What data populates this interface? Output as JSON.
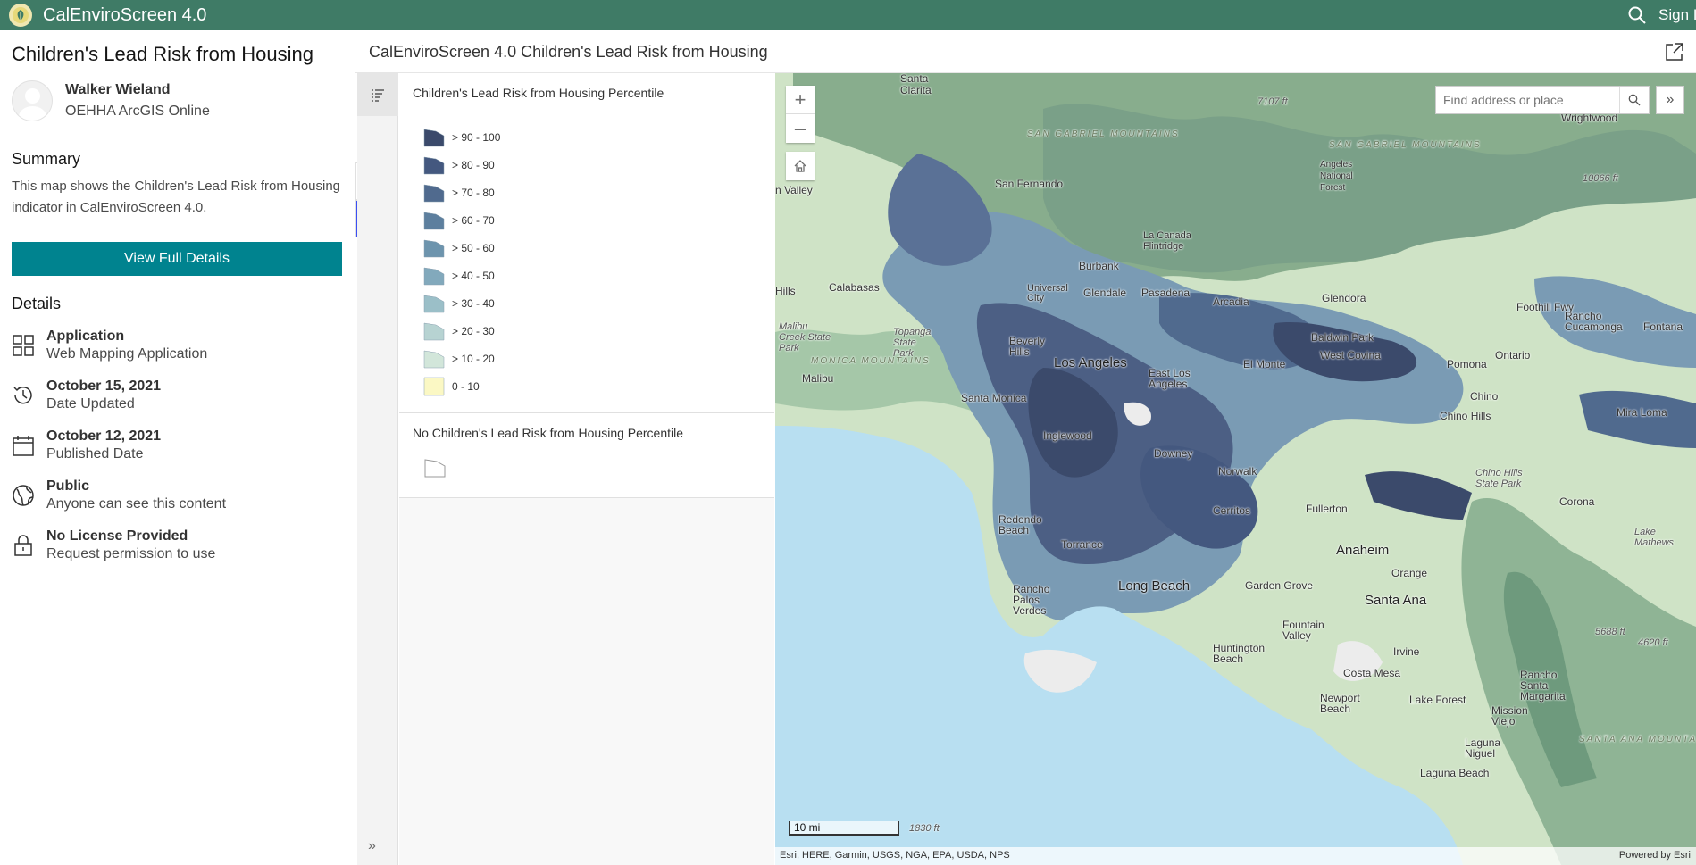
{
  "topbar": {
    "app_title": "CalEnviroScreen 4.0",
    "signin": "Sign In"
  },
  "item": {
    "title": "Children's Lead Risk from Housing",
    "owner_name": "Walker Wieland",
    "owner_org": "OEHHA ArcGIS Online",
    "summary_heading": "Summary",
    "summary_text": "This map shows the Children's Lead Risk from Housing indicator in CalEnviroScreen 4.0.",
    "full_details_label": "View Full Details",
    "details_heading": "Details",
    "details": [
      {
        "icon": "grid-icon",
        "title": "Application",
        "sub": "Web Mapping Application"
      },
      {
        "icon": "history-icon",
        "title": "October 15, 2021",
        "sub": "Date Updated"
      },
      {
        "icon": "calendar-icon",
        "title": "October 12, 2021",
        "sub": "Published Date"
      },
      {
        "icon": "globe-icon",
        "title": "Public",
        "sub": "Anyone can see this content"
      },
      {
        "icon": "lock-icon",
        "title": "No License Provided",
        "sub": "Request permission to use"
      }
    ]
  },
  "map_header": {
    "title": "CalEnviroScreen 4.0 Children's Lead Risk from Housing"
  },
  "legend": {
    "title": "Children's Lead Risk from Housing Percentile",
    "classes": [
      {
        "label": "> 90 - 100",
        "color": "#3b4a6b"
      },
      {
        "label": "> 80 - 90",
        "color": "#44587f"
      },
      {
        "label": "> 70 - 80",
        "color": "#506a8e"
      },
      {
        "label": "> 60 - 70",
        "color": "#5d7f9e"
      },
      {
        "label": "> 50 - 60",
        "color": "#6d94ad"
      },
      {
        "label": "> 40 - 50",
        "color": "#82a9bc"
      },
      {
        "label": "> 30 - 40",
        "color": "#9bbfc8"
      },
      {
        "label": "> 20 - 30",
        "color": "#b7d3d2"
      },
      {
        "label": "> 10 - 20",
        "color": "#d2e6da"
      },
      {
        "label": "0 - 10",
        "color": "#fbf8c4"
      }
    ],
    "nodata_title": "No Children's Lead Risk from Housing Percentile"
  },
  "map": {
    "search_placeholder": "Find address or place",
    "scale_label": "10 mi",
    "attribution": "Esri, HERE, Garmin, USGS, NGA, EPA, USDA, NPS",
    "powered_by": "Powered by Esri",
    "labels": {
      "santa_clarita": "Santa\nClarita",
      "san_gabriel_mtns": "SAN GABRIEL MOUNTAINS",
      "san_gabriel_mtns2": "SAN GABRIEL MOUNTAINS",
      "angeles_nf": "Angeles\nNational\nForest",
      "san_fernando": "San Fernando",
      "la_canada": "La Canada\nFlintridge",
      "burbank": "Burbank",
      "glendale": "Glendale",
      "pasadena": "Pasadena",
      "universal_city": "Universal\nCity",
      "calabasas": "Calabasas",
      "hills": "Hills",
      "malibu_creek": "Malibu\nCreek State\nPark",
      "topanga": "Topanga\nState\nPark",
      "santa_monica_mtns": "MONICA MOUNTAINS",
      "malibu": "Malibu",
      "beverly_hills": "Beverly\nHills",
      "los_angeles": "Los Angeles",
      "east_la": "East Los\nAngeles",
      "santa_monica": "Santa Monica",
      "inglewood": "Inglewood",
      "downey": "Downey",
      "norwalk": "Norwalk",
      "cerritos": "Cerritos",
      "redondo": "Redondo\nBeach",
      "torrance": "Torrance",
      "long_beach": "Long Beach",
      "rancho_palos": "Rancho\nPalos\nVerdes",
      "arcadia": "Arcadia",
      "glendora": "Glendora",
      "baldwin_park": "Baldwin Park",
      "west_covina": "West Covina",
      "el_monte": "El Monte",
      "pomona": "Pomona",
      "ontario": "Ontario",
      "chino": "Chino",
      "chino_hills": "Chino Hills",
      "chino_hills_sp": "Chino Hills\nState Park",
      "rancho_cucamonga": "Rancho\nCucamonga",
      "fontana": "Fontana",
      "mira_loma": "Mira Loma",
      "corona": "Corona",
      "lake_mathews": "Lake\nMathews",
      "fullerton": "Fullerton",
      "anaheim": "Anaheim",
      "garden_grove": "Garden Grove",
      "orange": "Orange",
      "santa_ana": "Santa Ana",
      "fountain_valley": "Fountain\nValley",
      "huntington": "Huntington\nBeach",
      "costa_mesa": "Costa Mesa",
      "irvine": "Irvine",
      "newport": "Newport\nBeach",
      "lake_forest": "Lake Forest",
      "mission_viejo": "Mission\nViejo",
      "rancho_sm": "Rancho\nSanta\nMargarita",
      "laguna_niguel": "Laguna\nNiguel",
      "laguna_beach": "Laguna Beach",
      "santa_ana_mtns": "SANTA ANA MOUNTAIN",
      "wrightwood": "Wrightwood",
      "valley": "n Valley",
      "foothill_fwy": "Foothill Fwy",
      "elev_7107": "7107 ft",
      "elev_10066": "10066 ft",
      "elev_5688": "5688 ft",
      "elev_4620": "4620 ft",
      "elev_1830": "1830 ft"
    }
  }
}
